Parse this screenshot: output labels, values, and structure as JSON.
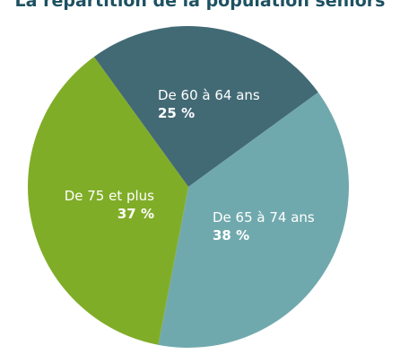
{
  "chart_data": {
    "type": "pie",
    "title": "La répartition de la population seniors",
    "categories": [
      "De 60 à 64 ans",
      "De 65 à 74 ans",
      "De 75 et plus"
    ],
    "values": [
      25,
      38,
      37
    ],
    "value_labels": [
      "25 %",
      "38 %",
      "37 %"
    ],
    "colors": [
      "#426a75",
      "#70a9ad",
      "#80ad28"
    ],
    "start_direction": "upper-left, clockwise",
    "legend": "none (labels drawn on slices)"
  },
  "colors": {
    "title": "#1d5162",
    "label_text": "#ffffff",
    "background": "#ffffff"
  }
}
